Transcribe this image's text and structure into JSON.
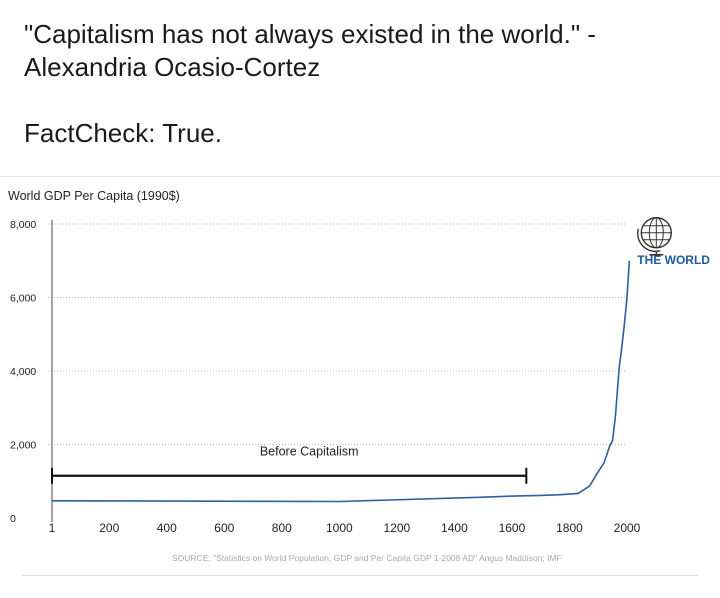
{
  "post": {
    "quote_line1": "\"Capitalism has not always existed in the world.\" -",
    "quote_line2": "Alexandria Ocasio-Cortez",
    "factcheck": "FactCheck: True."
  },
  "chart_data": {
    "type": "line",
    "title": "World GDP Per Capita (1990$)",
    "xlabel": "",
    "ylabel": "",
    "x_ticks": [
      "1",
      "200",
      "400",
      "600",
      "800",
      "1000",
      "1200",
      "1400",
      "1600",
      "1800",
      "2000"
    ],
    "y_ticks": [
      "0",
      "2,000",
      "4,000",
      "6,000",
      "8,000"
    ],
    "xlim": [
      1,
      2000
    ],
    "ylim": [
      0,
      8000
    ],
    "grid": true,
    "series": [
      {
        "name": "",
        "x": [
          1,
          1000,
          1500,
          1600,
          1700,
          1760,
          1800,
          1830,
          1870,
          1900,
          1920,
          1940,
          1950,
          1960,
          1973,
          1980,
          1990,
          2000,
          2008
        ],
        "y": [
          467,
          450,
          566,
          596,
          615,
          630,
          650,
          670,
          870,
          1260,
          1500,
          1960,
          2110,
          2800,
          4100,
          4500,
          5200,
          6000,
          7000
        ]
      }
    ],
    "bracket": {
      "x_start": 1,
      "x_end": 1650,
      "y": 1150,
      "label": "Before Capitalism"
    },
    "annotation": {
      "label": "THE WORLD",
      "icon": "globe-icon"
    },
    "source": "SOURCE: \"Statistics on World Population, GDP and Per Capita GDP 1-2008 AD\" Angus Maddison; IMF",
    "colors": {
      "line": "#2a5fa0",
      "label": "#1e5aa0",
      "bracket": "#111111",
      "grid": "#bbbbbb",
      "source": "#a8a8a8"
    }
  }
}
